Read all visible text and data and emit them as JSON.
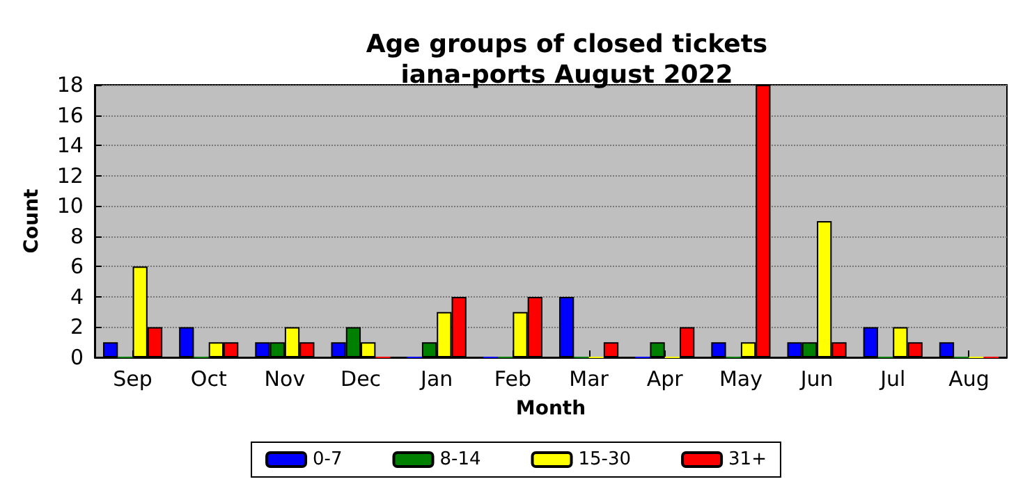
{
  "chart_data": {
    "type": "bar",
    "title": "Age groups of closed tickets\niana-ports August 2022",
    "xlabel": "Month",
    "ylabel": "Count",
    "categories": [
      "Sep",
      "Oct",
      "Nov",
      "Dec",
      "Jan",
      "Feb",
      "Mar",
      "Apr",
      "May",
      "Jun",
      "Jul",
      "Aug"
    ],
    "series": [
      {
        "name": "0-7",
        "color": "#0000ff",
        "values": [
          1,
          2,
          1,
          1,
          0,
          0,
          4,
          0,
          1,
          1,
          2,
          1
        ]
      },
      {
        "name": "8-14",
        "color": "#008000",
        "values": [
          0,
          0,
          1,
          2,
          1,
          0,
          0,
          1,
          0,
          1,
          0,
          0
        ]
      },
      {
        "name": "15-30",
        "color": "#ffff00",
        "values": [
          6,
          1,
          2,
          1,
          3,
          3,
          0,
          0,
          1,
          9,
          2,
          0
        ]
      },
      {
        "name": "31+",
        "color": "#ff0000",
        "values": [
          2,
          1,
          1,
          0,
          4,
          4,
          1,
          2,
          18,
          1,
          1,
          0
        ]
      }
    ],
    "ylim": [
      0,
      18
    ],
    "yticks": [
      0,
      2,
      4,
      6,
      8,
      10,
      12,
      14,
      16,
      18
    ],
    "grid": "y",
    "legend": "bottom"
  }
}
